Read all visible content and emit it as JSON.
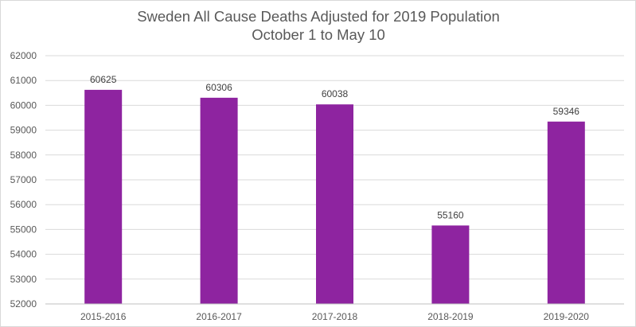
{
  "chart_data": {
    "type": "bar",
    "title": "Sweden All Cause Deaths Adjusted for 2019 Population",
    "subtitle": "October 1 to May 10",
    "categories": [
      "2015-2016",
      "2016-2017",
      "2017-2018",
      "2018-2019",
      "2019-2020"
    ],
    "values": [
      60625,
      60306,
      60038,
      55160,
      59346
    ],
    "data_labels": [
      "60625",
      "60306",
      "60038",
      "55160",
      "59346"
    ],
    "ylim": [
      52000,
      62000
    ],
    "yticks": [
      52000,
      53000,
      54000,
      55000,
      56000,
      57000,
      58000,
      59000,
      60000,
      61000,
      62000
    ],
    "xlabel": "",
    "ylabel": "",
    "grid": true,
    "legend": "none",
    "bar_color": "#8e24a0"
  }
}
